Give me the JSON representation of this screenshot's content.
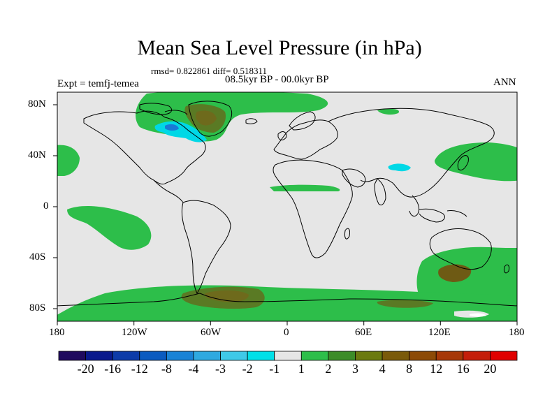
{
  "header": {
    "title": "Mean Sea Level Pressure (in hPa)",
    "stats": "rmsd= 0.822861 diff= 0.518311",
    "period": "08.5kyr BP - 00.0kyr BP",
    "experiment": "Expt = temfj-temea",
    "season": "ANN"
  },
  "axes": {
    "x_ticks": [
      "180",
      "120W",
      "60W",
      "0",
      "60E",
      "120E",
      "180"
    ],
    "y_ticks": [
      "80N",
      "40N",
      "0",
      "40S",
      "80S"
    ]
  },
  "colorbar": {
    "labels": [
      "-20",
      "-16",
      "-12",
      "-8",
      "-4",
      "-3",
      "-2",
      "-1",
      "1",
      "2",
      "3",
      "4",
      "8",
      "12",
      "16",
      "20"
    ],
    "colors": [
      "#1f0a5e",
      "#0a1a8c",
      "#0d3ba8",
      "#0b5bc0",
      "#1a83d6",
      "#2fa9e0",
      "#3fc9e8",
      "#00e0e8",
      "#e6e6e6",
      "#2dbe4a",
      "#3c8c28",
      "#6b7a10",
      "#7a5a0a",
      "#8c4a06",
      "#a63808",
      "#c41e0a",
      "#e00000"
    ]
  },
  "colors": {
    "land_ocean_neutral": "#e6e6e6",
    "positive_1_2": "#2dbe4a",
    "positive_2_3": "#5a8a2a",
    "positive_3_4": "#6e6a1c",
    "negative_cyan": "#00d8e6",
    "negative_blue": "#1a7ad6"
  }
}
